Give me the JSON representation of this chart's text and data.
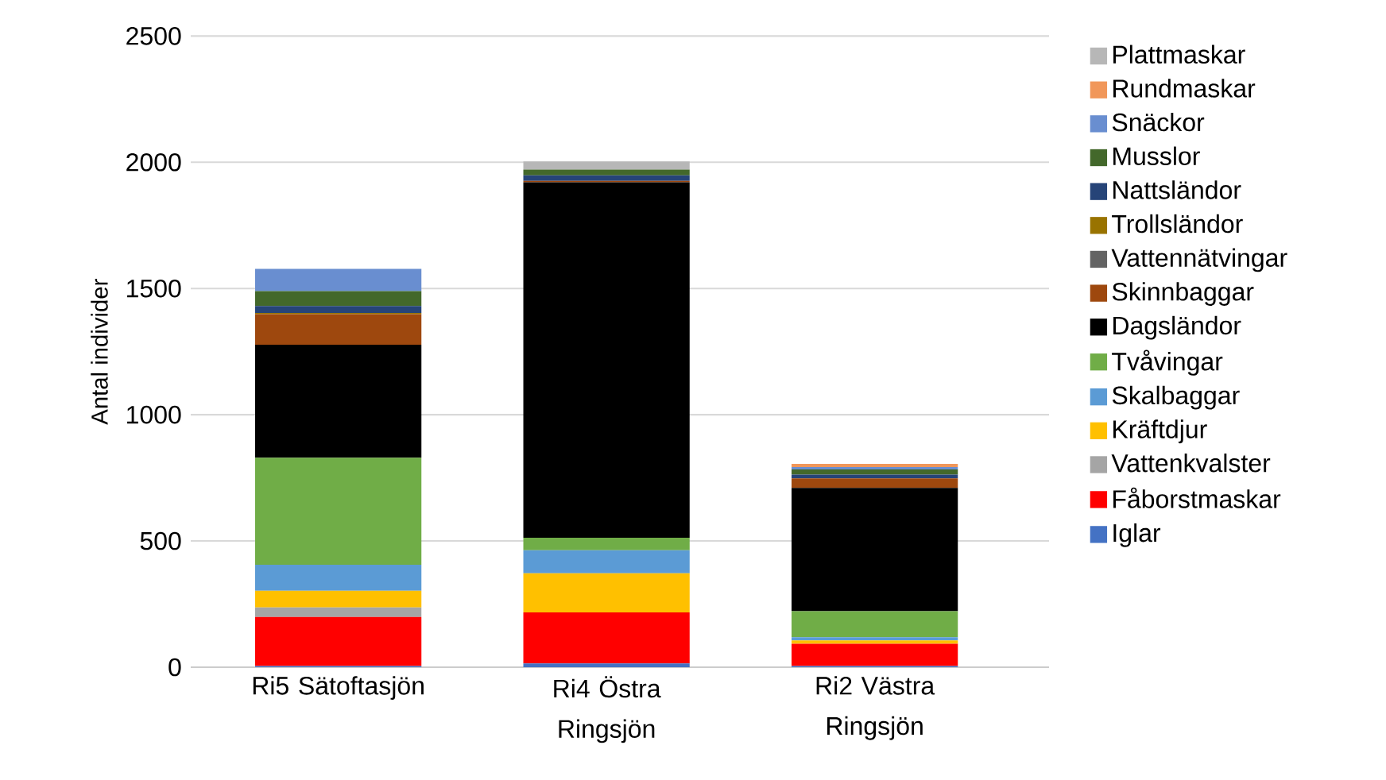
{
  "chart_data": {
    "type": "bar",
    "stacked": true,
    "ylabel": "Antal individer",
    "categories": [
      "Ri5 Sätoftasjön",
      "Ri4 Östra Ringsjön",
      "Ri2 Västra Ringsjön"
    ],
    "ylim": [
      0,
      2500
    ],
    "yticks": [
      0,
      500,
      1000,
      1500,
      2000,
      2500
    ],
    "grid": "y",
    "legend": "right",
    "series": [
      {
        "name": "Iglar",
        "color": "#4472c4",
        "values": [
          5,
          15,
          5
        ]
      },
      {
        "name": "Fåborstmaskar",
        "color": "#ff0000",
        "values": [
          194,
          202,
          88
        ]
      },
      {
        "name": "Vattenkvalster",
        "color": "#a5a5a5",
        "values": [
          38,
          0,
          0
        ]
      },
      {
        "name": "Kräftdjur",
        "color": "#ffc000",
        "values": [
          66,
          155,
          13
        ]
      },
      {
        "name": "Skalbaggar",
        "color": "#5b9bd5",
        "values": [
          103,
          91,
          13
        ]
      },
      {
        "name": "Tvåvingar",
        "color": "#70ad47",
        "values": [
          424,
          50,
          103
        ]
      },
      {
        "name": "Dagsländor",
        "color": "#000000",
        "values": [
          447,
          1408,
          488
        ]
      },
      {
        "name": "Skinnbaggar",
        "color": "#9e480e",
        "values": [
          121,
          5,
          38
        ]
      },
      {
        "name": "Vattennätvingar",
        "color": "#636363",
        "values": [
          0,
          0,
          0
        ]
      },
      {
        "name": "Trollsländor",
        "color": "#997300",
        "values": [
          5,
          0,
          0
        ]
      },
      {
        "name": "Nattsländor",
        "color": "#264478",
        "values": [
          28,
          22,
          15
        ]
      },
      {
        "name": "Musslor",
        "color": "#43682b",
        "values": [
          59,
          23,
          20
        ]
      },
      {
        "name": "Snäckor",
        "color": "#698ed0",
        "values": [
          88,
          0,
          10
        ]
      },
      {
        "name": "Rundmaskar",
        "color": "#f1975a",
        "values": [
          0,
          0,
          12
        ]
      },
      {
        "name": "Plattmaskar",
        "color": "#b7b7b7",
        "values": [
          0,
          32,
          0
        ]
      }
    ]
  }
}
